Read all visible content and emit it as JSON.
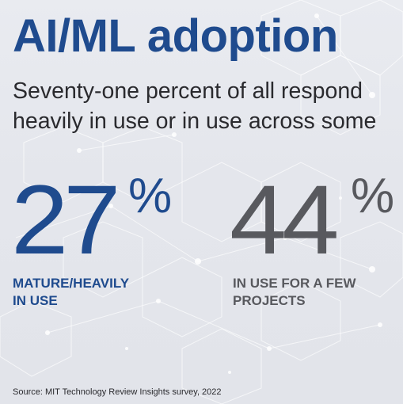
{
  "title": "AI/ML adoption",
  "subtitle": {
    "line1": "Seventy-one percent of all respond",
    "line2": "heavily in use or in use across some"
  },
  "stats": [
    {
      "value": "27",
      "percent_sign": "%",
      "label_line1": "MATURE/HEAVILY",
      "label_line2": "IN USE"
    },
    {
      "value": "44",
      "percent_sign": "%",
      "label_line1": "IN USE FOR A FEW",
      "label_line2": "PROJECTS"
    }
  ],
  "source": "Source: MIT Technology Review Insights survey, 2022",
  "colors": {
    "title": "#1f4b8e",
    "subtitle": "#2a2a2e",
    "stat1": "#1f4b8e",
    "stat2": "#58595e",
    "source": "#2a2a2e",
    "background": "#e6e8ee",
    "network": "#ffffff"
  }
}
